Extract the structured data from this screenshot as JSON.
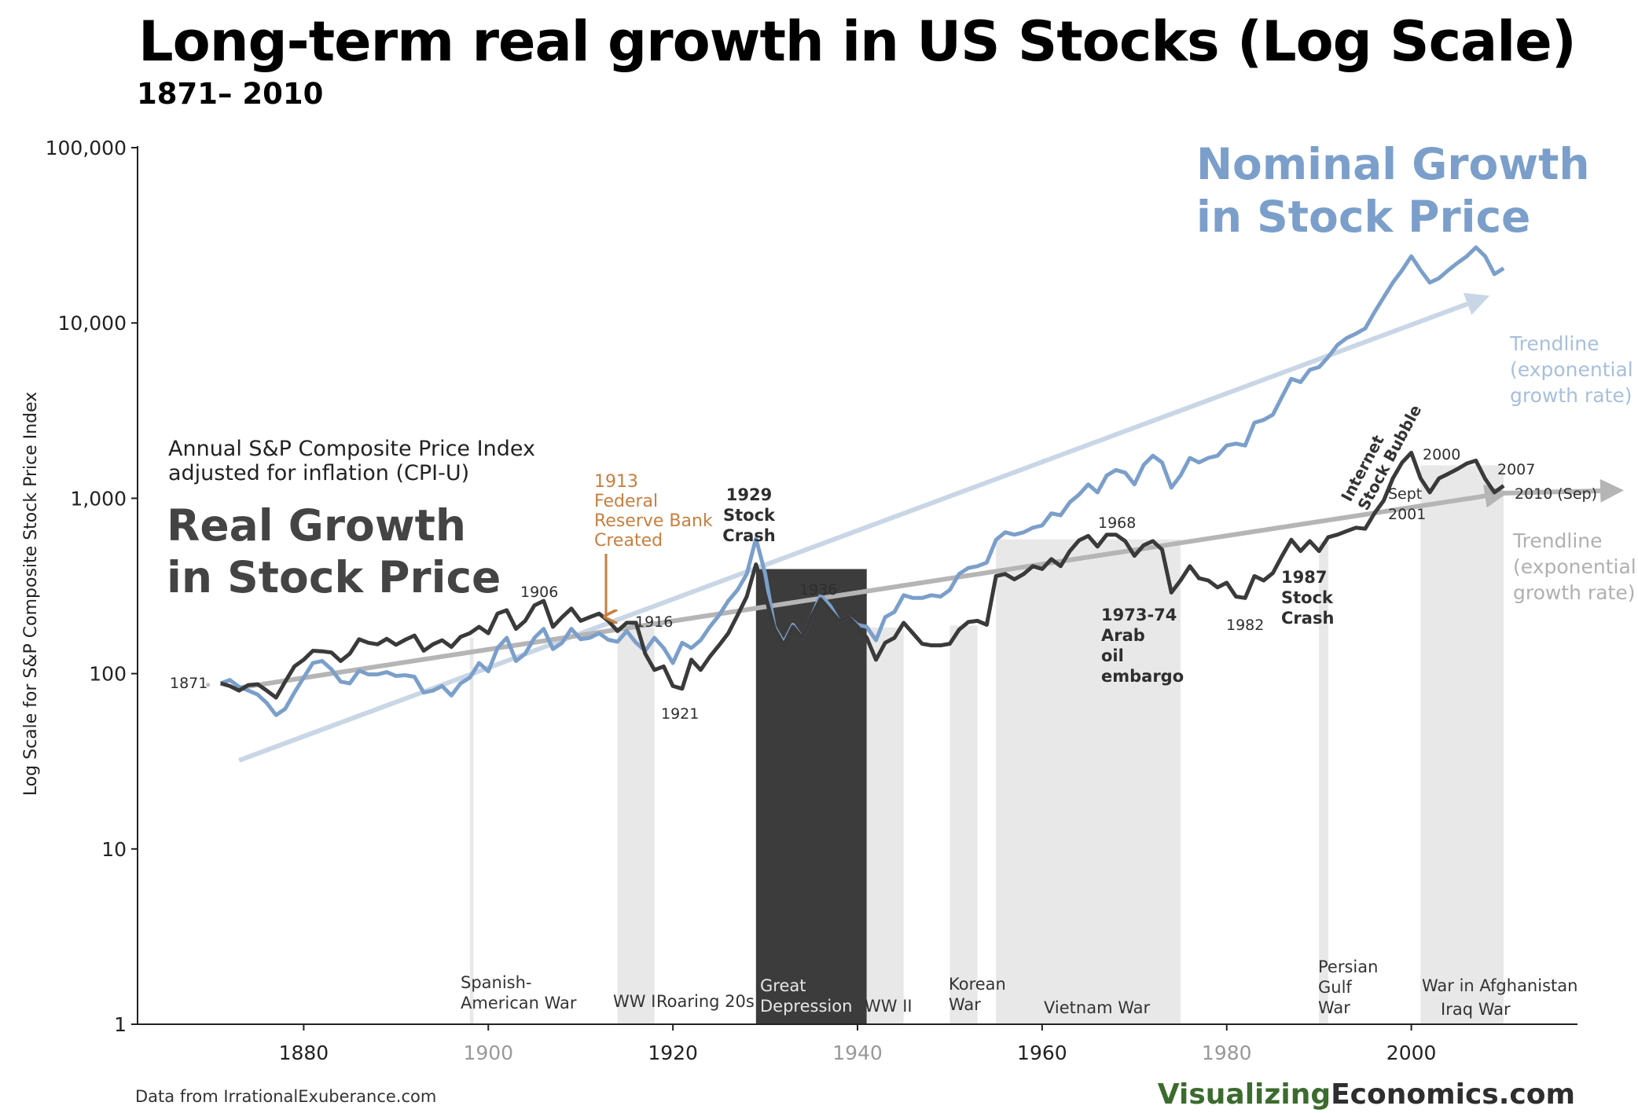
{
  "title": "Long-term real growth in US Stocks (Log Scale)",
  "subtitle": "1871– 2010",
  "ylabel": "Log Scale for S&P Composite Stock Price Index",
  "source": "Data from IrrationalExuberance.com",
  "brand": {
    "part1": "Visualizing",
    "part2": "Economics.com"
  },
  "colors": {
    "real": "#3a3a3a",
    "nominal": "#7b9fca",
    "brand_green": "#3b6b2e",
    "brand_dark": "#2e2e2e",
    "fed": "#c87f3f",
    "war_light": "#e8e8e8",
    "war_dark": "#3c3c3c"
  },
  "labels": {
    "nominal_title": [
      "Nominal Growth",
      "in Stock Price"
    ],
    "real_desc": [
      "Annual S&P Composite Price Index",
      "adjusted for inflation (CPI-U)"
    ],
    "real_title": [
      "Real Growth",
      "in Stock Price"
    ],
    "trend_nominal": [
      "Trendline",
      "(exponential",
      "growth rate)"
    ],
    "trend_real": [
      "Trendline",
      "(exponential",
      "growth rate)"
    ],
    "fed": [
      "1913",
      "Federal",
      "Reserve Bank",
      "Created"
    ]
  },
  "chart_data": {
    "type": "line",
    "title": "Long-term real growth in US Stocks (Log Scale)",
    "ylabel": "Log Scale for S&P Composite Stock Price Index",
    "y_scale": "log",
    "xlim": [
      1862,
      2018
    ],
    "ylim": [
      1,
      100000
    ],
    "x_ticks": [
      1880,
      1900,
      1920,
      1940,
      1960,
      1980,
      2000
    ],
    "y_ticks": [
      1,
      10,
      100,
      1000,
      10000,
      100000
    ],
    "y_tick_labels": [
      "1",
      "10",
      "100",
      "1,000",
      "10,000",
      "100,000"
    ],
    "series": [
      {
        "name": "Real Growth in Stock Price",
        "color": "#3a3a3a",
        "x": [
          1871,
          1872,
          1873,
          1874,
          1875,
          1876,
          1877,
          1878,
          1879,
          1880,
          1881,
          1882,
          1883,
          1884,
          1885,
          1886,
          1887,
          1888,
          1889,
          1890,
          1891,
          1892,
          1893,
          1894,
          1895,
          1896,
          1897,
          1898,
          1899,
          1900,
          1901,
          1902,
          1903,
          1904,
          1905,
          1906,
          1907,
          1908,
          1909,
          1910,
          1911,
          1912,
          1913,
          1914,
          1915,
          1916,
          1917,
          1918,
          1919,
          1920,
          1921,
          1922,
          1923,
          1924,
          1925,
          1926,
          1927,
          1928,
          1929,
          1930,
          1931,
          1932,
          1933,
          1934,
          1935,
          1936,
          1937,
          1938,
          1939,
          1940,
          1941,
          1942,
          1943,
          1944,
          1945,
          1946,
          1947,
          1948,
          1949,
          1950,
          1951,
          1952,
          1953,
          1954,
          1955,
          1956,
          1957,
          1958,
          1959,
          1960,
          1961,
          1962,
          1963,
          1964,
          1965,
          1966,
          1967,
          1968,
          1969,
          1970,
          1971,
          1972,
          1973,
          1974,
          1975,
          1976,
          1977,
          1978,
          1979,
          1980,
          1981,
          1982,
          1983,
          1984,
          1985,
          1986,
          1987,
          1988,
          1989,
          1990,
          1991,
          1992,
          1993,
          1994,
          1995,
          1996,
          1997,
          1998,
          1999,
          2000,
          2001,
          2002,
          2003,
          2004,
          2005,
          2006,
          2007,
          2008,
          2009,
          2010
        ],
        "values": [
          88,
          85,
          80,
          86,
          87,
          80,
          73,
          90,
          110,
          120,
          135,
          134,
          132,
          118,
          130,
          157,
          150,
          147,
          158,
          146,
          156,
          165,
          135,
          147,
          155,
          142,
          162,
          170,
          185,
          170,
          220,
          230,
          180,
          200,
          245,
          260,
          185,
          210,
          235,
          200,
          210,
          220,
          200,
          175,
          195,
          195,
          130,
          105,
          110,
          85,
          82,
          120,
          105,
          125,
          145,
          170,
          215,
          275,
          420,
          280,
          180,
          145,
          185,
          160,
          210,
          265,
          230,
          200,
          210,
          185,
          160,
          120,
          150,
          160,
          195,
          170,
          148,
          145,
          145,
          148,
          178,
          197,
          200,
          190,
          360,
          370,
          345,
          370,
          410,
          395,
          450,
          410,
          500,
          575,
          610,
          530,
          620,
          620,
          570,
          470,
          540,
          570,
          510,
          290,
          340,
          410,
          350,
          340,
          310,
          330,
          275,
          270,
          360,
          340,
          375,
          470,
          580,
          500,
          570,
          500,
          600,
          620,
          650,
          680,
          670,
          820,
          970,
          1300,
          1600,
          1820,
          1300,
          1080,
          1300,
          1380,
          1470,
          1580,
          1640,
          1290,
          1080,
          1180
        ]
      },
      {
        "name": "Nominal Growth in Stock Price",
        "color": "#7b9fca",
        "x": [
          1871,
          1872,
          1873,
          1874,
          1875,
          1876,
          1877,
          1878,
          1879,
          1880,
          1881,
          1882,
          1883,
          1884,
          1885,
          1886,
          1887,
          1888,
          1889,
          1890,
          1891,
          1892,
          1893,
          1894,
          1895,
          1896,
          1897,
          1898,
          1899,
          1900,
          1901,
          1902,
          1903,
          1904,
          1905,
          1906,
          1907,
          1908,
          1909,
          1910,
          1911,
          1912,
          1913,
          1914,
          1915,
          1916,
          1917,
          1918,
          1919,
          1920,
          1921,
          1922,
          1923,
          1924,
          1925,
          1926,
          1927,
          1928,
          1929,
          1930,
          1931,
          1932,
          1933,
          1934,
          1935,
          1936,
          1937,
          1938,
          1939,
          1940,
          1941,
          1942,
          1943,
          1944,
          1945,
          1946,
          1947,
          1948,
          1949,
          1950,
          1951,
          1952,
          1953,
          1954,
          1955,
          1956,
          1957,
          1958,
          1959,
          1960,
          1961,
          1962,
          1963,
          1964,
          1965,
          1966,
          1967,
          1968,
          1969,
          1970,
          1971,
          1972,
          1973,
          1974,
          1975,
          1976,
          1977,
          1978,
          1979,
          1980,
          1981,
          1982,
          1983,
          1984,
          1985,
          1986,
          1987,
          1988,
          1989,
          1990,
          1991,
          1992,
          1993,
          1994,
          1995,
          1996,
          1997,
          1998,
          1999,
          2000,
          2001,
          2002,
          2003,
          2004,
          2005,
          2006,
          2007,
          2008,
          2009,
          2010
        ],
        "values": [
          88,
          92,
          84,
          80,
          76,
          68,
          58,
          63,
          78,
          95,
          115,
          118,
          106,
          90,
          88,
          104,
          99,
          99,
          102,
          97,
          98,
          96,
          78,
          80,
          85,
          75,
          88,
          95,
          115,
          103,
          140,
          160,
          118,
          130,
          160,
          180,
          138,
          150,
          180,
          157,
          160,
          170,
          156,
          152,
          175,
          150,
          135,
          160,
          140,
          115,
          150,
          140,
          155,
          185,
          215,
          260,
          300,
          370,
          590,
          370,
          185,
          150,
          190,
          160,
          210,
          280,
          245,
          200,
          210,
          190,
          185,
          155,
          210,
          225,
          280,
          270,
          270,
          280,
          275,
          300,
          370,
          400,
          410,
          430,
          580,
          640,
          620,
          640,
          680,
          700,
          820,
          800,
          950,
          1050,
          1200,
          1080,
          1350,
          1450,
          1400,
          1200,
          1550,
          1750,
          1600,
          1150,
          1350,
          1700,
          1600,
          1700,
          1750,
          2000,
          2050,
          2000,
          2700,
          2800,
          3000,
          3800,
          4800,
          4600,
          5400,
          5600,
          6400,
          7500,
          8200,
          8700,
          9300,
          11500,
          14000,
          17000,
          20000,
          24000,
          20000,
          17000,
          18000,
          20000,
          22000,
          24000,
          27000,
          24000,
          19000,
          20500
        ]
      },
      {
        "name": "Trendline (exponential growth rate)",
        "color": "#c9d6e6",
        "x": [
          1873,
          2008
        ],
        "values": [
          32,
          14000
        ]
      },
      {
        "name": "Trendline (exponential growth rate)",
        "color": "#b5b5b5",
        "x": [
          1873,
          2010
        ],
        "values": [
          83,
          1070
        ]
      }
    ],
    "events": [
      {
        "label": "Spanish-\nAmerican War",
        "start": 1898,
        "end": 1898.4
      },
      {
        "label": "WW I",
        "start": 1914,
        "end": 1918
      },
      {
        "label": "Roaring 20s",
        "start": 1920,
        "end": 1929,
        "shade": false
      },
      {
        "label": "Great\nDepression",
        "start": 1929,
        "end": 1941,
        "dark": true
      },
      {
        "label": "WW II",
        "start": 1941,
        "end": 1945
      },
      {
        "label": "Korean\nWar",
        "start": 1950,
        "end": 1953
      },
      {
        "label": "Vietnam War",
        "start": 1955,
        "end": 1975
      },
      {
        "label": "Persian\nGulf\nWar",
        "start": 1990,
        "end": 1991
      },
      {
        "label": "War in Afghanistan",
        "start": 2001,
        "end": 2010
      },
      {
        "label": "Iraq War",
        "start": 2003,
        "end": 2010
      }
    ],
    "annotations": [
      {
        "text": "1871",
        "x": 1871,
        "y": 88
      },
      {
        "text": "1906",
        "x": 1906,
        "y": 260
      },
      {
        "text": "1916",
        "x": 1916,
        "y": 195
      },
      {
        "text": "1921",
        "x": 1921,
        "y": 82
      },
      {
        "text": "1929\nStock\nCrash",
        "x": 1929,
        "y": 420,
        "bold": true
      },
      {
        "text": "1936",
        "x": 1936,
        "y": 265
      },
      {
        "text": "1968",
        "x": 1968,
        "y": 620
      },
      {
        "text": "1973-74\nArab\noil\nembargo",
        "x": 1974,
        "y": 290,
        "bold": true
      },
      {
        "text": "1982",
        "x": 1982,
        "y": 270
      },
      {
        "text": "1987\nStock\nCrash",
        "x": 1987,
        "y": 580,
        "bold": true
      },
      {
        "text": "Internet\nStock Bubble",
        "x": 1995,
        "y": 820,
        "bold": true,
        "rotated": true
      },
      {
        "text": "Sept\n2001",
        "x": 2001,
        "y": 1300
      },
      {
        "text": "2000",
        "x": 2000,
        "y": 1820
      },
      {
        "text": "2007",
        "x": 2007,
        "y": 1640
      },
      {
        "text": "2010 (Sep)",
        "x": 2010,
        "y": 1180
      }
    ],
    "grid": false,
    "legend": "none"
  }
}
